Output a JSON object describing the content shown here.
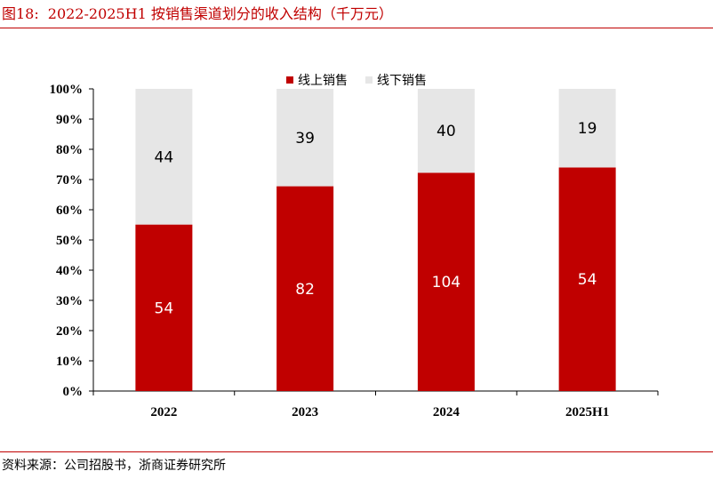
{
  "header": {
    "figure_label": "图18:",
    "title": "2022-2025H1 按销售渠道划分的收入结构（千万元）"
  },
  "footer": {
    "source": "资料来源：公司招股书，浙商证券研究所"
  },
  "colors": {
    "accent": "#c00000",
    "online": "#c00000",
    "offline": "#e6e6e6"
  },
  "chart_data": {
    "type": "bar",
    "stacked": "percent",
    "categories": [
      "2022",
      "2023",
      "2024",
      "2025H1"
    ],
    "series": [
      {
        "name": "线上销售",
        "values": [
          54,
          82,
          104,
          54
        ]
      },
      {
        "name": "线下销售",
        "values": [
          44,
          39,
          40,
          19
        ]
      }
    ],
    "y_ticks": [
      "0%",
      "10%",
      "20%",
      "30%",
      "40%",
      "50%",
      "60%",
      "70%",
      "80%",
      "90%",
      "100%"
    ],
    "ylim": [
      0,
      100
    ],
    "grid": false,
    "legend_position": "top-center",
    "title": "",
    "xlabel": "",
    "ylabel": ""
  }
}
